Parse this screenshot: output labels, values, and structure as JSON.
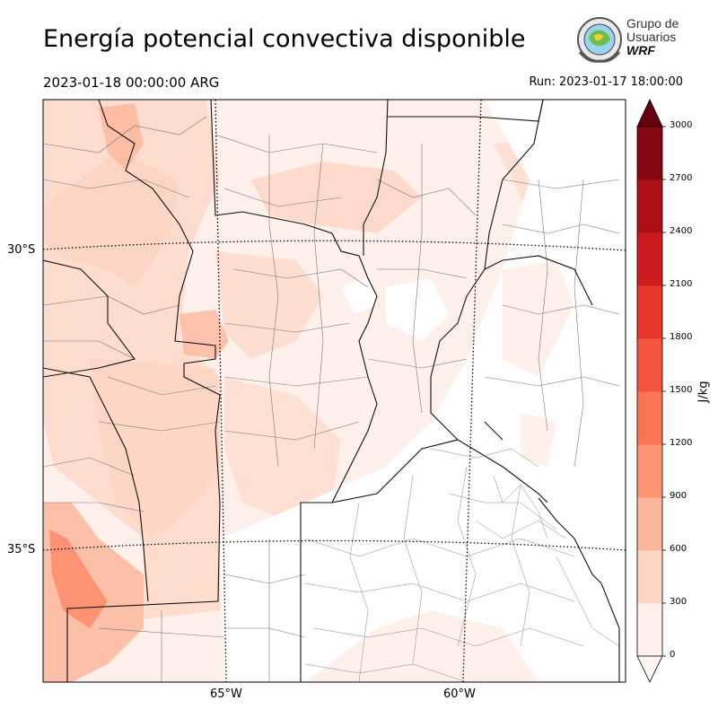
{
  "header": {
    "title": "Energía potencial convectiva disponible",
    "valid_time": "2023-01-18 00:00:00 ARG",
    "run_time": "Run: 2023-01-17 18:00:00"
  },
  "logo": {
    "line1": "Grupo de",
    "line2": "Usuarios",
    "line3": "WRF"
  },
  "map": {
    "lat_labels": [
      "30°S",
      "35°S"
    ],
    "lon_labels": [
      "65°W",
      "60°W"
    ]
  },
  "colorbar": {
    "label": "J/kg",
    "ticks": [
      "0",
      "300",
      "600",
      "900",
      "1200",
      "1500",
      "1800",
      "2100",
      "2400",
      "2700",
      "3000"
    ],
    "colors": [
      "#fff0eb",
      "#fdd5c4",
      "#fcb69b",
      "#fc9474",
      "#fb7555",
      "#f4553e",
      "#e8362c",
      "#cb1b1e",
      "#ad1117",
      "#860811",
      "#67000d"
    ]
  }
}
